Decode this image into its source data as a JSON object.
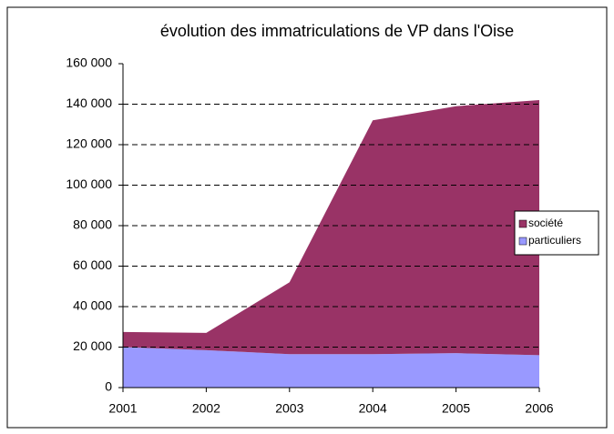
{
  "chart_data": {
    "type": "stacked_area",
    "title": "évolution des immatriculations de VP dans l'Oise",
    "categories": [
      "2001",
      "2002",
      "2003",
      "2004",
      "2005",
      "2006"
    ],
    "series": [
      {
        "name": "particuliers",
        "color": "#9999ff",
        "values": [
          20000,
          18500,
          16500,
          16500,
          17000,
          16000
        ]
      },
      {
        "name": "société",
        "color": "#993366",
        "values": [
          7500,
          8500,
          35500,
          115500,
          122000,
          126000
        ]
      }
    ],
    "ylim": [
      0,
      160000
    ],
    "yticks": [
      0,
      {
        "value": 20000,
        "label": "20 000"
      },
      {
        "value": 40000,
        "label": "40 000"
      },
      {
        "value": 60000,
        "label": "60 000"
      },
      {
        "value": 80000,
        "label": "80 000"
      },
      {
        "value": 100000,
        "label": "100 000"
      },
      {
        "value": 120000,
        "label": "120 000"
      },
      {
        "value": 140000,
        "label": "140 000"
      },
      {
        "value": 160000,
        "label": "160 000"
      }
    ],
    "grid": true,
    "legend": "right"
  }
}
